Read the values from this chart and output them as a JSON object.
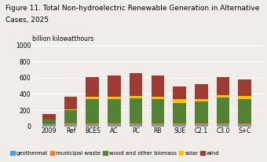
{
  "categories": [
    "2009",
    "Ref",
    "BCES",
    "AC",
    "PC",
    "RB",
    "SUE",
    "C2.1",
    "C3.0",
    "S+C"
  ],
  "series": {
    "geothermal": [
      15,
      20,
      20,
      20,
      20,
      20,
      20,
      20,
      20,
      20
    ],
    "municipal_waste": [
      10,
      15,
      20,
      20,
      20,
      20,
      15,
      15,
      20,
      20
    ],
    "wood_and_other_biomass": [
      55,
      165,
      300,
      295,
      305,
      300,
      255,
      275,
      315,
      300
    ],
    "solar": [
      5,
      15,
      30,
      35,
      35,
      30,
      45,
      30,
      35,
      35
    ],
    "wind": [
      70,
      155,
      240,
      255,
      275,
      260,
      155,
      185,
      215,
      205
    ]
  },
  "colors": {
    "geothermal": "#5b9bd5",
    "municipal_waste": "#ed7d31",
    "wood_and_other_biomass": "#548235",
    "solar": "#ffc000",
    "wind": "#9e3b32"
  },
  "legend_labels": [
    "geothermal",
    "municipal waste",
    "wood and other biomass",
    "solar",
    "wind"
  ],
  "title_line1": "Figure 11. Total Non-hydroelectric Renewable Generation in Alternative",
  "title_line2": "Cases, 2025",
  "ylabel": "billion kilowatthours",
  "ylim": [
    0,
    1000
  ],
  "yticks": [
    0,
    200,
    400,
    600,
    800,
    1000
  ],
  "title_fontsize": 6.5,
  "axis_fontsize": 5.5,
  "legend_fontsize": 5.0,
  "ylabel_fontsize": 5.5,
  "background_color": "#f0ede8"
}
